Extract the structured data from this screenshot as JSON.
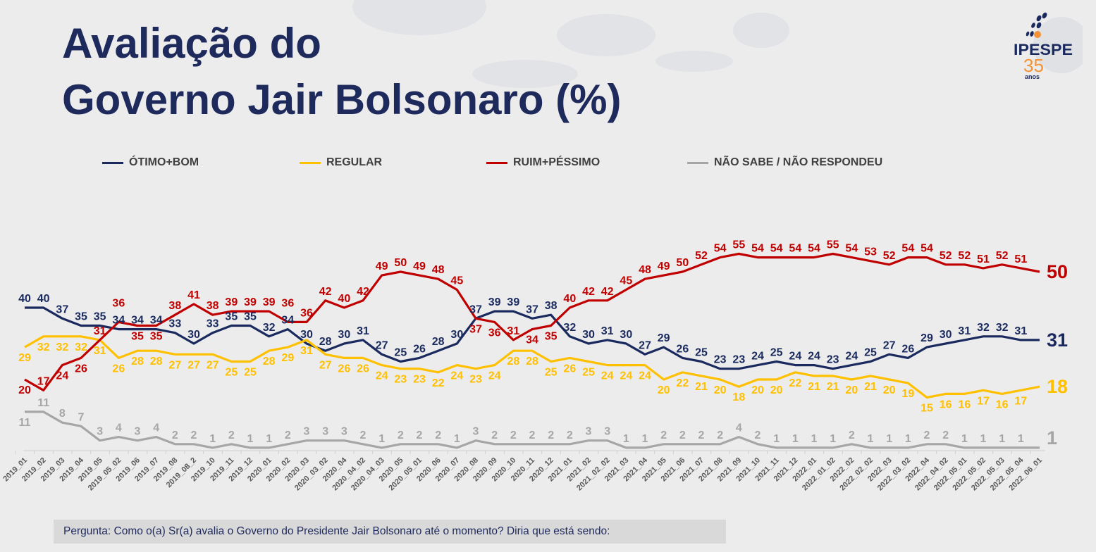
{
  "title": {
    "line1": "Avaliação do",
    "line2": "Governo Jair Bolsonaro (%)"
  },
  "logo": {
    "text": "IPESPE",
    "years": "35",
    "anos": "anos"
  },
  "footer": {
    "question": "Pergunta: Como o(a) Sr(a) avalia o Governo do Presidente Jair Bolsonaro até o momento? Diria que está sendo:"
  },
  "colors": {
    "otimo_bom": "#1a2a5e",
    "regular": "#ffc000",
    "ruim_pessimo": "#c00000",
    "nao_sabe": "#a6a6a6",
    "title": "#1f2a5c",
    "logo_accent": "#f39237"
  },
  "chart_data": {
    "type": "line",
    "title": "Avaliação do Governo Jair Bolsonaro (%)",
    "ylim": [
      0,
      60
    ],
    "grid": false,
    "legend": "top",
    "categories": [
      "2019_01",
      "2019_02",
      "2019_03",
      "2019_04",
      "2019_05",
      "2019_05_02",
      "2019_06",
      "2019_07",
      "2019_08",
      "2019_08_2",
      "2019_10",
      "2019_11",
      "2019_12",
      "2020_01",
      "2020_02",
      "2020_03",
      "2020_03_02",
      "2020_04",
      "2020_04_02",
      "2020_04_03",
      "2020_05",
      "2020_05_01",
      "2020_06",
      "2020_07",
      "2020_08",
      "2020_09",
      "2020_10",
      "2020_11",
      "2020_12",
      "2021_01",
      "2021_02",
      "2021_02_02",
      "2021_03",
      "2021_04",
      "2021_05",
      "2021_06",
      "2021_07",
      "2021_08",
      "2021_09",
      "2021_10",
      "2021_11",
      "2021_12",
      "2022_01",
      "2022_01_02",
      "2022_02",
      "2022_02_02",
      "2022_03",
      "2022_03_02",
      "2022_04",
      "2022_04_02",
      "2022_05_01",
      "2022_05_02",
      "2022_05_03",
      "2022_05_04",
      "2022_06_01"
    ],
    "series": [
      {
        "name": "ÓTIMO+BOM",
        "color": "#1a2a5e",
        "label_pos": "above",
        "values": [
          40,
          40,
          37,
          35,
          35,
          34,
          34,
          34,
          33,
          30,
          33,
          35,
          35,
          32,
          34,
          30,
          28,
          30,
          31,
          27,
          25,
          26,
          28,
          30,
          37,
          39,
          39,
          37,
          38,
          32,
          30,
          31,
          30,
          27,
          29,
          26,
          25,
          23,
          23,
          24,
          25,
          24,
          24,
          23,
          24,
          25,
          27,
          26,
          29,
          30,
          31,
          32,
          32,
          31,
          31
        ]
      },
      {
        "name": "REGULAR",
        "color": "#ffc000",
        "label_pos": "below",
        "values": [
          29,
          32,
          32,
          32,
          31,
          26,
          28,
          28,
          27,
          27,
          27,
          25,
          25,
          28,
          29,
          31,
          27,
          26,
          26,
          24,
          23,
          23,
          22,
          24,
          23,
          24,
          28,
          28,
          25,
          26,
          25,
          24,
          24,
          24,
          20,
          22,
          21,
          20,
          18,
          20,
          20,
          22,
          21,
          21,
          20,
          21,
          20,
          19,
          15,
          16,
          16,
          17,
          16,
          17,
          18
        ]
      },
      {
        "name": "RUIM+PÉSSIMO",
        "color": "#c00000",
        "label_pos": "above",
        "values": [
          20,
          17,
          24,
          26,
          31,
          36,
          35,
          35,
          38,
          41,
          38,
          39,
          39,
          39,
          36,
          36,
          42,
          40,
          42,
          49,
          50,
          49,
          48,
          45,
          37,
          36,
          31,
          34,
          35,
          40,
          42,
          42,
          45,
          48,
          49,
          50,
          52,
          54,
          55,
          54,
          54,
          54,
          54,
          55,
          54,
          53,
          52,
          54,
          54,
          52,
          52,
          51,
          52,
          51,
          50
        ]
      },
      {
        "name": "NÃO SABE / NÃO RESPONDEU",
        "color": "#a6a6a6",
        "label_pos": "above",
        "values": [
          11,
          11,
          8,
          7,
          3,
          4,
          3,
          4,
          2,
          2,
          1,
          2,
          1,
          1,
          2,
          3,
          3,
          3,
          2,
          1,
          2,
          2,
          2,
          1,
          3,
          2,
          2,
          2,
          2,
          2,
          3,
          3,
          1,
          1,
          2,
          2,
          2,
          2,
          4,
          2,
          1,
          1,
          1,
          1,
          2,
          1,
          1,
          1,
          2,
          2,
          1,
          1,
          1,
          1,
          1
        ]
      }
    ]
  }
}
